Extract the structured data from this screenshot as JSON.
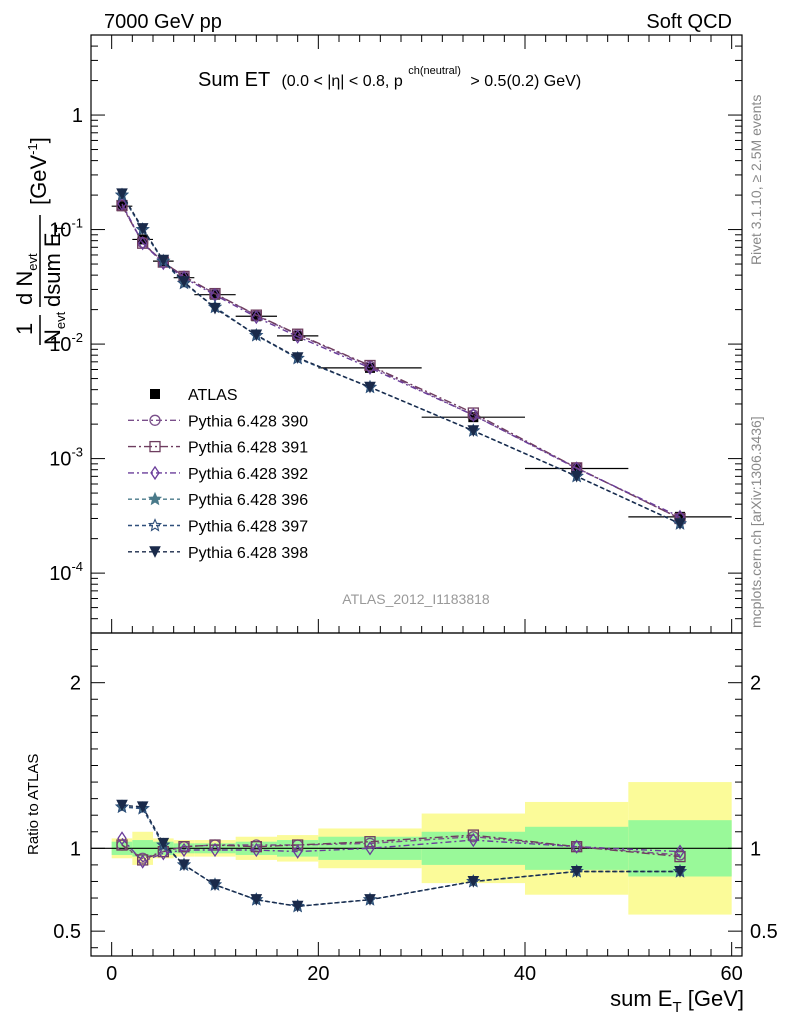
{
  "header": {
    "left": "7000 GeV pp",
    "right": "Soft QCD",
    "side_top": "Rivet 3.1.10, ≥ 2.5M events",
    "side_bottom": "mcplots.cern.ch [arXiv:1306.3436]",
    "analysis_id": "ATLAS_2012_I1183818"
  },
  "colors": {
    "band_inner": "#99f999",
    "band_outer": "#fbfb99",
    "c390": "#7a4f8a",
    "c391": "#6e3d5f",
    "c392": "#6a3d9a",
    "c396": "#4a7a8a",
    "c397": "#2f4f7a",
    "c398": "#1a2a4a"
  },
  "chart_data": [
    {
      "type": "scatter",
      "panel": "main",
      "title": "Sum ET",
      "title_suffix": "(0.0 < |η| < 0.8, p",
      "title_sup": "ch(neutral)",
      "title_end": "> 0.5(0.2) GeV)",
      "ylabel": "1/N_evt dN_evt/dsum E_T [GeV^-1]",
      "yscale": "log",
      "ylim": [
        3e-05,
        5
      ],
      "xlim": [
        -2,
        61
      ],
      "ytick_labels": [
        "10^-4",
        "10^-3",
        "10^-2",
        "10^-1",
        "1"
      ],
      "legend_position": "left",
      "series": [
        {
          "name": "ATLAS",
          "key": "atlas",
          "style": "data",
          "x": [
            1,
            3,
            5,
            7,
            10,
            14,
            18,
            25,
            35,
            45,
            55
          ],
          "y": [
            0.16,
            0.082,
            0.053,
            0.038,
            0.027,
            0.0175,
            0.0118,
            0.0062,
            0.0023,
            0.00082,
            0.00031
          ],
          "xerr": [
            1,
            1,
            1,
            1,
            2,
            2,
            2,
            5,
            5,
            5,
            5
          ]
        },
        {
          "name": "Pythia 6.428 390",
          "key": "c390",
          "marker": "circle",
          "dash": "6,3,2,3",
          "x": [
            1,
            3,
            5,
            7,
            10,
            14,
            18,
            25,
            35,
            45,
            55
          ],
          "y": [
            0.162,
            0.077,
            0.052,
            0.039,
            0.0275,
            0.0178,
            0.0121,
            0.0064,
            0.0024,
            0.00083,
            0.0003
          ]
        },
        {
          "name": "Pythia 6.428 391",
          "key": "c391",
          "marker": "square",
          "dash": "8,3,2,3",
          "x": [
            1,
            3,
            5,
            7,
            10,
            14,
            18,
            25,
            35,
            45,
            55
          ],
          "y": [
            0.162,
            0.076,
            0.052,
            0.039,
            0.0276,
            0.0179,
            0.0122,
            0.0065,
            0.0025,
            0.00083,
            0.0003
          ]
        },
        {
          "name": "Pythia 6.428 392",
          "key": "c392",
          "marker": "diamond",
          "dash": "6,3,2,3",
          "x": [
            1,
            3,
            5,
            7,
            10,
            14,
            18,
            25,
            35,
            45,
            55
          ],
          "y": [
            0.168,
            0.076,
            0.051,
            0.038,
            0.0268,
            0.0172,
            0.0116,
            0.0062,
            0.0024,
            0.00082,
            0.00031
          ]
        },
        {
          "name": "Pythia 6.428 396",
          "key": "c396",
          "marker": "star",
          "dash": "4,3",
          "x": [
            1,
            3,
            5,
            7,
            10,
            14,
            18,
            25,
            35,
            45,
            55
          ],
          "y": [
            0.2,
            0.1,
            0.053,
            0.034,
            0.021,
            0.0119,
            0.0075,
            0.0042,
            0.00175,
            0.0007,
            0.00027
          ]
        },
        {
          "name": "Pythia 6.428 397",
          "key": "c397",
          "marker": "star-open",
          "dash": "4,3",
          "x": [
            1,
            3,
            5,
            7,
            10,
            14,
            18,
            25,
            35,
            45,
            55
          ],
          "y": [
            0.2,
            0.1,
            0.053,
            0.034,
            0.021,
            0.0119,
            0.0075,
            0.0042,
            0.00175,
            0.0007,
            0.00027
          ]
        },
        {
          "name": "Pythia 6.428 398",
          "key": "c398",
          "marker": "triangle-down",
          "dash": "4,3",
          "x": [
            1,
            3,
            5,
            7,
            10,
            14,
            18,
            25,
            35,
            45,
            55
          ],
          "y": [
            0.205,
            0.102,
            0.054,
            0.035,
            0.0205,
            0.012,
            0.0076,
            0.0042,
            0.00175,
            0.0007,
            0.00027
          ]
        }
      ]
    },
    {
      "type": "line",
      "panel": "ratio",
      "ylabel": "Ratio to ATLAS",
      "xlabel": "sum E_T [GeV]",
      "ylim": [
        0.35,
        2.3
      ],
      "xlim": [
        -2,
        61
      ],
      "xtick_labels": [
        "0",
        "20",
        "40",
        "60"
      ],
      "ytick_labels": [
        "0.5",
        "1",
        "2"
      ],
      "bands": {
        "edges": [
          0,
          2,
          4,
          6,
          8,
          12,
          16,
          20,
          30,
          40,
          50,
          60
        ],
        "inner": [
          [
            0.96,
            1.04
          ],
          [
            0.95,
            1.05
          ],
          [
            0.96,
            1.04
          ],
          [
            0.97,
            1.03
          ],
          [
            0.97,
            1.03
          ],
          [
            0.96,
            1.04
          ],
          [
            0.95,
            1.05
          ],
          [
            0.93,
            1.07
          ],
          [
            0.9,
            1.1
          ],
          [
            0.87,
            1.13
          ],
          [
            0.83,
            1.17
          ]
        ],
        "outer": [
          [
            0.94,
            1.06
          ],
          [
            0.9,
            1.1
          ],
          [
            0.94,
            1.06
          ],
          [
            0.95,
            1.05
          ],
          [
            0.95,
            1.05
          ],
          [
            0.93,
            1.07
          ],
          [
            0.92,
            1.08
          ],
          [
            0.88,
            1.12
          ],
          [
            0.79,
            1.21
          ],
          [
            0.72,
            1.28
          ],
          [
            0.6,
            1.4
          ]
        ]
      },
      "series": [
        {
          "name": "Pythia 6.428 390",
          "key": "c390",
          "marker": "circle",
          "dash": "6,3,2,3",
          "x": [
            1,
            3,
            5,
            7,
            10,
            14,
            18,
            25,
            35,
            45,
            55
          ],
          "y": [
            1.02,
            0.94,
            0.98,
            1.01,
            1.02,
            1.02,
            1.02,
            1.03,
            1.07,
            1.01,
            0.96
          ]
        },
        {
          "name": "Pythia 6.428 391",
          "key": "c391",
          "marker": "square",
          "dash": "8,3,2,3",
          "x": [
            1,
            3,
            5,
            7,
            10,
            14,
            18,
            25,
            35,
            45,
            55
          ],
          "y": [
            1.02,
            0.93,
            0.98,
            1.01,
            1.02,
            1.01,
            1.02,
            1.04,
            1.08,
            1.01,
            0.95
          ]
        },
        {
          "name": "Pythia 6.428 392",
          "key": "c392",
          "marker": "diamond",
          "dash": "6,3,2,3",
          "x": [
            1,
            3,
            5,
            7,
            10,
            14,
            18,
            25,
            35,
            45,
            55
          ],
          "y": [
            1.06,
            0.92,
            0.97,
            0.99,
            0.99,
            0.99,
            0.98,
            1.0,
            1.05,
            1.01,
            0.98
          ]
        },
        {
          "name": "Pythia 6.428 396",
          "key": "c396",
          "marker": "star",
          "dash": "4,3",
          "x": [
            1,
            3,
            5,
            7,
            10,
            14,
            18,
            25,
            35,
            45,
            55
          ],
          "y": [
            1.25,
            1.24,
            1.02,
            0.9,
            0.78,
            0.69,
            0.65,
            0.69,
            0.8,
            0.86,
            0.86
          ]
        },
        {
          "name": "Pythia 6.428 397",
          "key": "c397",
          "marker": "star-open",
          "dash": "4,3",
          "x": [
            1,
            3,
            5,
            7,
            10,
            14,
            18,
            25,
            35,
            45,
            55
          ],
          "y": [
            1.25,
            1.24,
            1.02,
            0.9,
            0.78,
            0.69,
            0.65,
            0.69,
            0.8,
            0.86,
            0.86
          ]
        },
        {
          "name": "Pythia 6.428 398",
          "key": "c398",
          "marker": "triangle-down",
          "dash": "4,3",
          "x": [
            1,
            3,
            5,
            7,
            10,
            14,
            18,
            25,
            35,
            45,
            55
          ],
          "y": [
            1.26,
            1.25,
            1.03,
            0.9,
            0.78,
            0.69,
            0.65,
            0.69,
            0.8,
            0.86,
            0.86
          ]
        }
      ]
    }
  ]
}
